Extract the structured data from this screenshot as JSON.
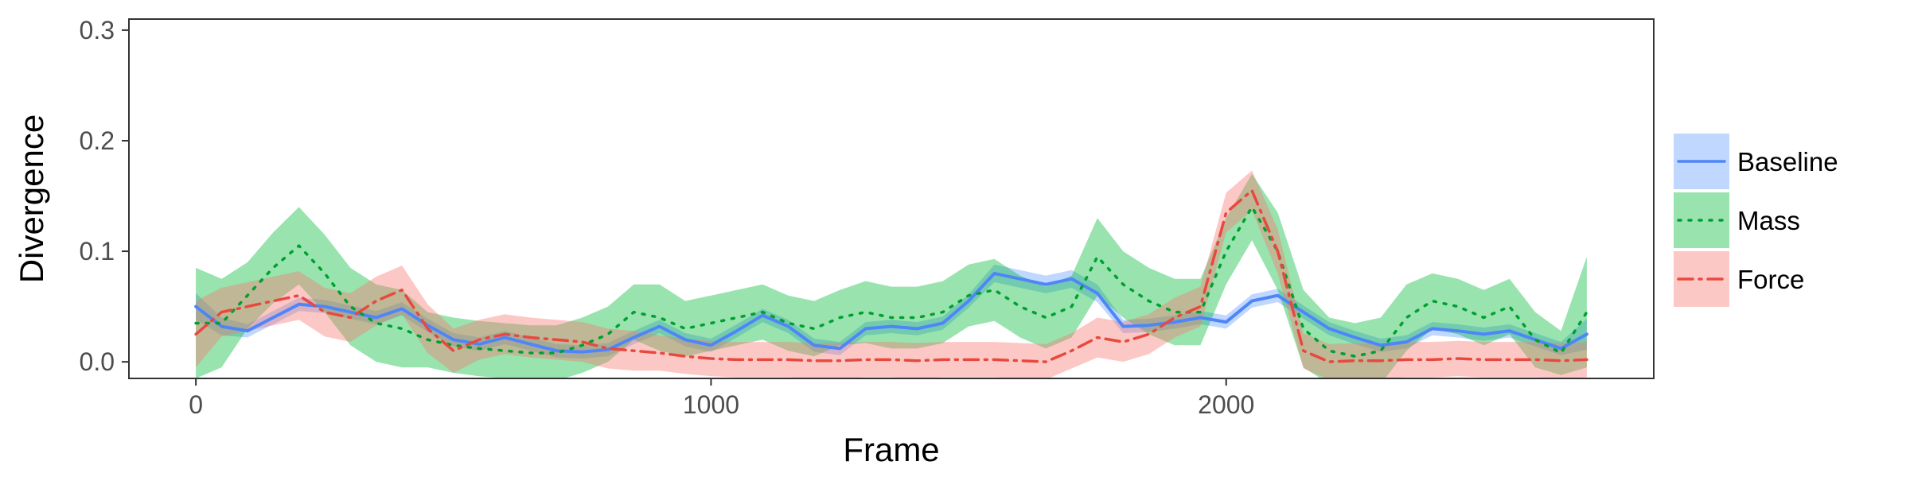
{
  "chart_data": {
    "type": "line",
    "title": "",
    "xlabel": "Frame",
    "ylabel": "Divergence",
    "xlim": [
      -130,
      2830
    ],
    "ylim": [
      -0.015,
      0.31
    ],
    "xticks": [
      0,
      1000,
      2000
    ],
    "yticks": [
      0.0,
      0.1,
      0.2,
      0.3
    ],
    "ytick_labels": [
      "0.0",
      "0.1",
      "0.2",
      "0.3"
    ],
    "grid": false,
    "legend_position": "right",
    "x": [
      0,
      50,
      100,
      150,
      200,
      250,
      300,
      350,
      400,
      450,
      500,
      550,
      600,
      650,
      700,
      750,
      800,
      850,
      900,
      950,
      1000,
      1050,
      1100,
      1150,
      1200,
      1250,
      1300,
      1350,
      1400,
      1450,
      1500,
      1550,
      1600,
      1650,
      1700,
      1750,
      1800,
      1850,
      1900,
      1950,
      2000,
      2050,
      2100,
      2150,
      2200,
      2250,
      2300,
      2350,
      2400,
      2450,
      2500,
      2550,
      2600,
      2650,
      2700
    ],
    "series": [
      {
        "name": "Baseline",
        "color": "#619CFF",
        "line_color": "#4F86F7",
        "linestyle": "solid",
        "values": [
          0.05,
          0.032,
          0.028,
          0.04,
          0.052,
          0.05,
          0.045,
          0.04,
          0.048,
          0.033,
          0.02,
          0.016,
          0.022,
          0.016,
          0.01,
          0.009,
          0.011,
          0.022,
          0.032,
          0.02,
          0.015,
          0.028,
          0.042,
          0.032,
          0.015,
          0.012,
          0.03,
          0.032,
          0.03,
          0.035,
          0.055,
          0.08,
          0.075,
          0.07,
          0.075,
          0.062,
          0.032,
          0.033,
          0.036,
          0.04,
          0.036,
          0.055,
          0.06,
          0.045,
          0.03,
          0.022,
          0.015,
          0.018,
          0.03,
          0.028,
          0.025,
          0.028,
          0.02,
          0.012,
          0.025
        ],
        "band_width": [
          0.012,
          0.008,
          0.006,
          0.006,
          0.006,
          0.006,
          0.006,
          0.006,
          0.006,
          0.006,
          0.006,
          0.006,
          0.006,
          0.006,
          0.006,
          0.006,
          0.006,
          0.006,
          0.006,
          0.006,
          0.006,
          0.006,
          0.006,
          0.006,
          0.006,
          0.006,
          0.006,
          0.006,
          0.006,
          0.006,
          0.006,
          0.008,
          0.008,
          0.008,
          0.008,
          0.008,
          0.006,
          0.006,
          0.006,
          0.006,
          0.006,
          0.006,
          0.006,
          0.006,
          0.006,
          0.006,
          0.006,
          0.006,
          0.006,
          0.006,
          0.006,
          0.006,
          0.006,
          0.006,
          0.014
        ]
      },
      {
        "name": "Mass",
        "color": "#00BA38",
        "line_color": "#00A030",
        "linestyle": "dotted",
        "values": [
          0.035,
          0.035,
          0.06,
          0.085,
          0.105,
          0.08,
          0.05,
          0.035,
          0.03,
          0.02,
          0.015,
          0.012,
          0.01,
          0.008,
          0.008,
          0.015,
          0.025,
          0.045,
          0.04,
          0.03,
          0.035,
          0.04,
          0.045,
          0.035,
          0.03,
          0.04,
          0.045,
          0.04,
          0.04,
          0.045,
          0.06,
          0.065,
          0.05,
          0.04,
          0.05,
          0.095,
          0.07,
          0.055,
          0.045,
          0.045,
          0.1,
          0.14,
          0.1,
          0.03,
          0.01,
          0.005,
          0.01,
          0.04,
          0.055,
          0.05,
          0.04,
          0.05,
          0.02,
          0.008,
          0.045
        ],
        "band_width": [
          0.05,
          0.04,
          0.03,
          0.032,
          0.035,
          0.035,
          0.035,
          0.035,
          0.035,
          0.025,
          0.025,
          0.025,
          0.025,
          0.025,
          0.025,
          0.025,
          0.025,
          0.025,
          0.03,
          0.025,
          0.025,
          0.025,
          0.025,
          0.025,
          0.025,
          0.025,
          0.028,
          0.028,
          0.028,
          0.028,
          0.028,
          0.028,
          0.028,
          0.028,
          0.028,
          0.035,
          0.03,
          0.03,
          0.03,
          0.03,
          0.03,
          0.03,
          0.035,
          0.035,
          0.03,
          0.03,
          0.03,
          0.03,
          0.025,
          0.025,
          0.025,
          0.025,
          0.025,
          0.02,
          0.05
        ]
      },
      {
        "name": "Force",
        "color": "#F8766D",
        "line_color": "#E8493F",
        "linestyle": "dashdot",
        "values": [
          0.025,
          0.045,
          0.05,
          0.055,
          0.06,
          0.045,
          0.04,
          0.055,
          0.065,
          0.03,
          0.01,
          0.02,
          0.025,
          0.022,
          0.02,
          0.018,
          0.012,
          0.01,
          0.008,
          0.005,
          0.003,
          0.002,
          0.002,
          0.002,
          0.001,
          0.001,
          0.002,
          0.002,
          0.001,
          0.002,
          0.002,
          0.002,
          0.001,
          0.0,
          0.01,
          0.022,
          0.018,
          0.025,
          0.04,
          0.05,
          0.135,
          0.155,
          0.1,
          0.01,
          0.0,
          0.001,
          0.001,
          0.002,
          0.002,
          0.003,
          0.002,
          0.002,
          0.002,
          0.001,
          0.002
        ],
        "band_width": [
          0.03,
          0.022,
          0.022,
          0.022,
          0.022,
          0.022,
          0.022,
          0.022,
          0.022,
          0.022,
          0.02,
          0.018,
          0.018,
          0.018,
          0.018,
          0.018,
          0.018,
          0.018,
          0.016,
          0.016,
          0.016,
          0.016,
          0.016,
          0.016,
          0.016,
          0.016,
          0.016,
          0.016,
          0.016,
          0.016,
          0.016,
          0.016,
          0.016,
          0.016,
          0.016,
          0.018,
          0.018,
          0.018,
          0.018,
          0.018,
          0.018,
          0.018,
          0.02,
          0.016,
          0.016,
          0.016,
          0.016,
          0.016,
          0.016,
          0.016,
          0.016,
          0.016,
          0.016,
          0.016,
          0.016
        ]
      }
    ]
  }
}
